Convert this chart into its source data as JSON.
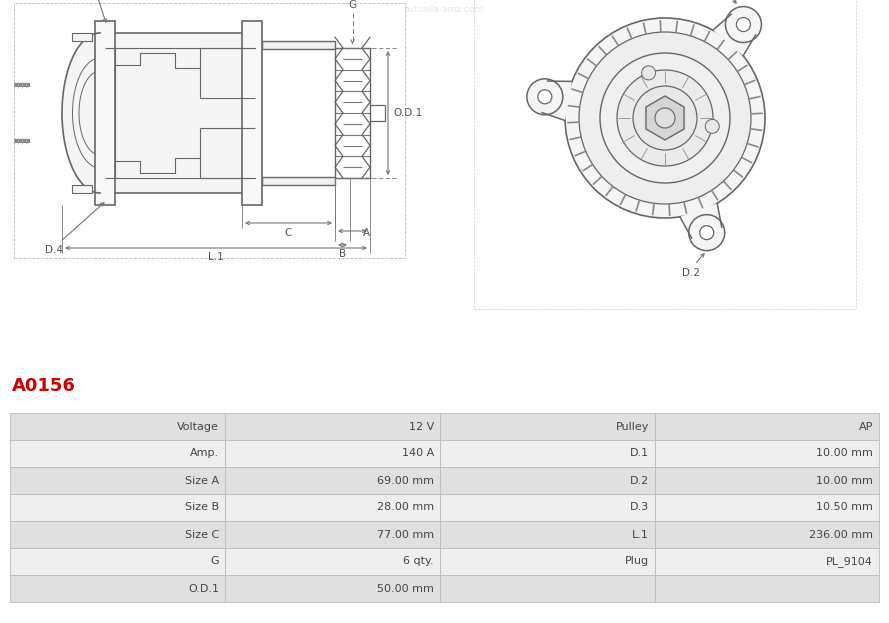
{
  "title": "A0156",
  "title_color": "#cc0000",
  "bg_color": "#ffffff",
  "table_rows": [
    [
      "Voltage",
      "12 V",
      "Pulley",
      "AP"
    ],
    [
      "Amp.",
      "140 A",
      "D.1",
      "10.00 mm"
    ],
    [
      "Size A",
      "69.00 mm",
      "D.2",
      "10.00 mm"
    ],
    [
      "Size B",
      "28.00 mm",
      "D.3",
      "10.50 mm"
    ],
    [
      "Size C",
      "77.00 mm",
      "L.1",
      "236.00 mm"
    ],
    [
      "G",
      "6 qty.",
      "Plug",
      "PL_9104"
    ],
    [
      "O.D.1",
      "50.00 mm",
      "",
      ""
    ]
  ],
  "row_bg_dark": "#e0e0e0",
  "row_bg_light": "#efefef",
  "line_color": "#bbbbbb",
  "text_color": "#444444",
  "label_color": "#555555",
  "dim_color": "#777777",
  "draw_color": "#666666"
}
